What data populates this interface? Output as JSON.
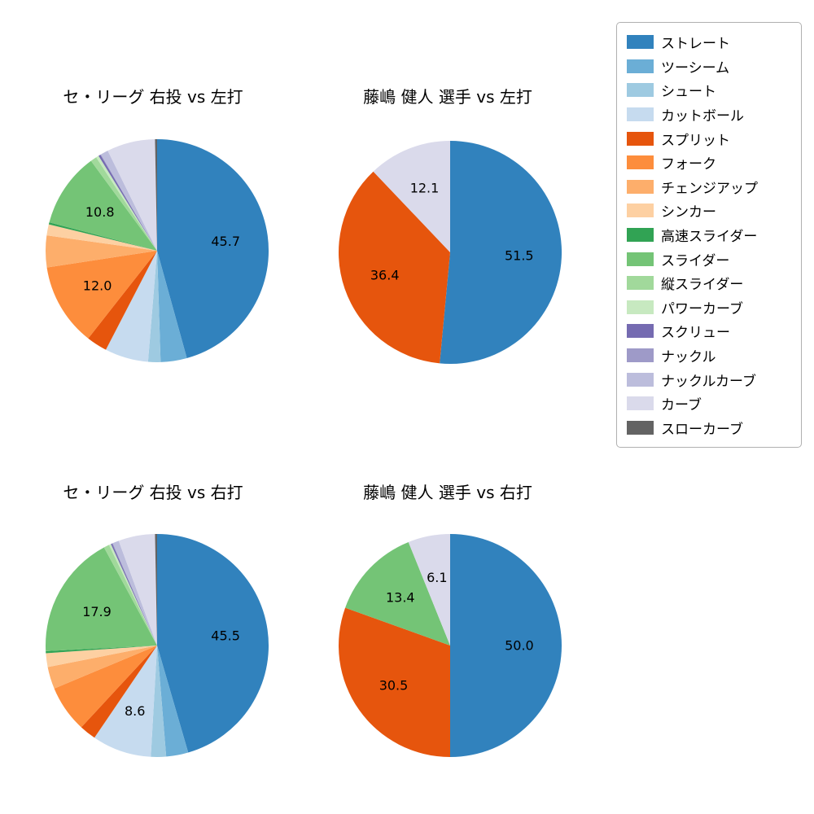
{
  "style": {
    "background": "#ffffff",
    "label_color": "#000000"
  },
  "legend": {
    "items": [
      {
        "key": "straight",
        "label": "ストレート",
        "color": "#3182bd"
      },
      {
        "key": "two-seam",
        "label": "ツーシーム",
        "color": "#6baed6"
      },
      {
        "key": "shuuto",
        "label": "シュート",
        "color": "#9ecae1"
      },
      {
        "key": "cut-ball",
        "label": "カットボール",
        "color": "#c6dbef"
      },
      {
        "key": "split",
        "label": "スプリット",
        "color": "#e6550d"
      },
      {
        "key": "fork",
        "label": "フォーク",
        "color": "#fd8d3c"
      },
      {
        "key": "changeup",
        "label": "チェンジアップ",
        "color": "#fdae6b"
      },
      {
        "key": "sinker",
        "label": "シンカー",
        "color": "#fdd0a2"
      },
      {
        "key": "fast-slider",
        "label": "高速スライダー",
        "color": "#31a354"
      },
      {
        "key": "slider",
        "label": "スライダー",
        "color": "#74c476"
      },
      {
        "key": "vertical-slider",
        "label": "縦スライダー",
        "color": "#a1d99b"
      },
      {
        "key": "power-curve",
        "label": "パワーカーブ",
        "color": "#c7e9c0"
      },
      {
        "key": "screw",
        "label": "スクリュー",
        "color": "#756bb1"
      },
      {
        "key": "knuckle",
        "label": "ナックル",
        "color": "#9e9ac8"
      },
      {
        "key": "knuckle-curve",
        "label": "ナックルカーブ",
        "color": "#bcbddc"
      },
      {
        "key": "curve",
        "label": "カーブ",
        "color": "#dadaeb"
      },
      {
        "key": "slow-curve",
        "label": "スローカーブ",
        "color": "#636363"
      }
    ]
  },
  "chart_data": [
    {
      "type": "pie",
      "title": "セ・リーグ 右投 vs 左打",
      "start_angle": "top",
      "direction": "clockwise",
      "slices": [
        {
          "key": "straight",
          "label": "ストレート",
          "value": 45.7,
          "value_label_visible": true
        },
        {
          "key": "two-seam",
          "label": "ツーシーム",
          "value": 3.8,
          "value_label_visible": false
        },
        {
          "key": "shuuto",
          "label": "シュート",
          "value": 1.8,
          "value_label_visible": false
        },
        {
          "key": "cut-ball",
          "label": "カットボール",
          "value": 6.3,
          "value_label_visible": false
        },
        {
          "key": "split",
          "label": "スプリット",
          "value": 3.0,
          "value_label_visible": false
        },
        {
          "key": "fork",
          "label": "フォーク",
          "value": 12.0,
          "value_label_visible": true
        },
        {
          "key": "changeup",
          "label": "チェンジアップ",
          "value": 4.6,
          "value_label_visible": false
        },
        {
          "key": "sinker",
          "label": "シンカー",
          "value": 1.6,
          "value_label_visible": false
        },
        {
          "key": "fast-slider",
          "label": "高速スライダー",
          "value": 0.3,
          "value_label_visible": false
        },
        {
          "key": "slider",
          "label": "スライダー",
          "value": 10.8,
          "value_label_visible": true
        },
        {
          "key": "vertical-slider",
          "label": "縦スライダー",
          "value": 0.9,
          "value_label_visible": false
        },
        {
          "key": "power-curve",
          "label": "パワーカーブ",
          "value": 0.4,
          "value_label_visible": false
        },
        {
          "key": "screw",
          "label": "スクリュー",
          "value": 0.3,
          "value_label_visible": false
        },
        {
          "key": "knuckle",
          "label": "ナックル",
          "value": 0.1,
          "value_label_visible": false
        },
        {
          "key": "knuckle-curve",
          "label": "ナックルカーブ",
          "value": 1.1,
          "value_label_visible": false
        },
        {
          "key": "curve",
          "label": "カーブ",
          "value": 7.0,
          "value_label_visible": false
        },
        {
          "key": "slow-curve",
          "label": "スローカーブ",
          "value": 0.3,
          "value_label_visible": false
        }
      ]
    },
    {
      "type": "pie",
      "title": "藤嶋 健人 選手 vs 左打",
      "start_angle": "top",
      "direction": "clockwise",
      "slices": [
        {
          "key": "straight",
          "label": "ストレート",
          "value": 51.5,
          "value_label_visible": true
        },
        {
          "key": "split",
          "label": "スプリット",
          "value": 36.4,
          "value_label_visible": true
        },
        {
          "key": "curve",
          "label": "カーブ",
          "value": 12.1,
          "value_label_visible": true
        }
      ]
    },
    {
      "type": "pie",
      "title": "セ・リーグ 右投 vs 右打",
      "start_angle": "top",
      "direction": "clockwise",
      "slices": [
        {
          "key": "straight",
          "label": "ストレート",
          "value": 45.5,
          "value_label_visible": true
        },
        {
          "key": "two-seam",
          "label": "ツーシーム",
          "value": 3.2,
          "value_label_visible": false
        },
        {
          "key": "shuuto",
          "label": "シュート",
          "value": 2.2,
          "value_label_visible": false
        },
        {
          "key": "cut-ball",
          "label": "カットボール",
          "value": 8.6,
          "value_label_visible": true
        },
        {
          "key": "split",
          "label": "スプリット",
          "value": 2.4,
          "value_label_visible": false
        },
        {
          "key": "fork",
          "label": "フォーク",
          "value": 6.8,
          "value_label_visible": false
        },
        {
          "key": "changeup",
          "label": "チェンジアップ",
          "value": 3.2,
          "value_label_visible": false
        },
        {
          "key": "sinker",
          "label": "シンカー",
          "value": 2.0,
          "value_label_visible": false
        },
        {
          "key": "fast-slider",
          "label": "高速スライダー",
          "value": 0.3,
          "value_label_visible": false
        },
        {
          "key": "slider",
          "label": "スライダー",
          "value": 17.9,
          "value_label_visible": true
        },
        {
          "key": "vertical-slider",
          "label": "縦スライダー",
          "value": 0.8,
          "value_label_visible": false
        },
        {
          "key": "power-curve",
          "label": "パワーカーブ",
          "value": 0.3,
          "value_label_visible": false
        },
        {
          "key": "screw",
          "label": "スクリュー",
          "value": 0.2,
          "value_label_visible": false
        },
        {
          "key": "knuckle",
          "label": "ナックル",
          "value": 0.1,
          "value_label_visible": false
        },
        {
          "key": "knuckle-curve",
          "label": "ナックルカーブ",
          "value": 0.9,
          "value_label_visible": false
        },
        {
          "key": "curve",
          "label": "カーブ",
          "value": 5.3,
          "value_label_visible": false
        },
        {
          "key": "slow-curve",
          "label": "スローカーブ",
          "value": 0.3,
          "value_label_visible": false
        }
      ]
    },
    {
      "type": "pie",
      "title": "藤嶋 健人 選手 vs 右打",
      "start_angle": "top",
      "direction": "clockwise",
      "slices": [
        {
          "key": "straight",
          "label": "ストレート",
          "value": 50.0,
          "value_label_visible": true
        },
        {
          "key": "split",
          "label": "スプリット",
          "value": 30.5,
          "value_label_visible": true
        },
        {
          "key": "slider",
          "label": "スライダー",
          "value": 13.4,
          "value_label_visible": true
        },
        {
          "key": "curve",
          "label": "カーブ",
          "value": 6.1,
          "value_label_visible": true
        }
      ]
    }
  ]
}
